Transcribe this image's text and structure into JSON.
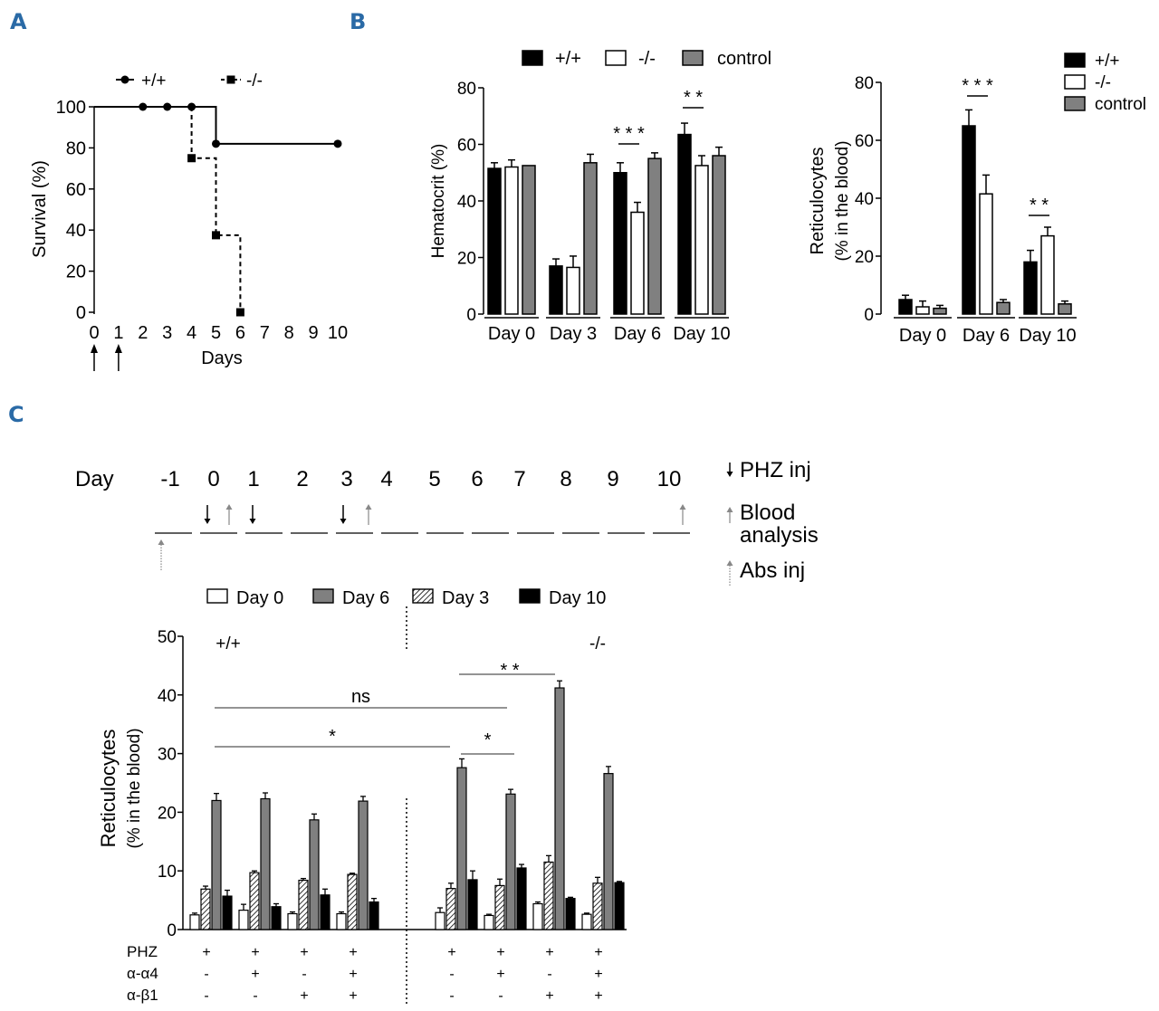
{
  "panels": {
    "A": "A",
    "B": "B",
    "C": "C"
  },
  "colors": {
    "accent": "#2a6aa6",
    "black": "#000000",
    "white": "#ffffff",
    "gray": "#808080",
    "lightgray": "#999999"
  },
  "chart_data": [
    {
      "id": "survival",
      "type": "line",
      "ylabel": "Survival (%)",
      "xlabel": "Days",
      "xticks": [
        0,
        1,
        2,
        3,
        4,
        5,
        6,
        7,
        8,
        9,
        10
      ],
      "yticks": [
        0,
        20,
        40,
        60,
        80,
        100
      ],
      "ylim": [
        0,
        100
      ],
      "xlim": [
        0,
        10
      ],
      "legend": [
        "+/+",
        "-/-"
      ],
      "series": [
        {
          "name": "+/+",
          "style": "solid",
          "marker": "circle",
          "x": [
            0,
            2,
            3,
            4,
            5,
            10
          ],
          "y": [
            100,
            100,
            100,
            100,
            82,
            82
          ]
        },
        {
          "name": "-/-",
          "style": "dashed",
          "marker": "square",
          "x": [
            4,
            5,
            6
          ],
          "y": [
            75,
            37.5,
            0
          ]
        }
      ],
      "annotations": [
        "injection arrows at day 0 and day 1"
      ]
    },
    {
      "id": "hematocrit",
      "type": "bar",
      "ylabel": "Hematocrit (%)",
      "categories": [
        "Day 0",
        "Day 3",
        "Day 6",
        "Day 10"
      ],
      "yticks": [
        0,
        20,
        40,
        60,
        80
      ],
      "ylim": [
        0,
        80
      ],
      "series": [
        {
          "name": "+/+",
          "color": "#000000",
          "values": [
            51.5,
            17,
            50,
            63.5
          ],
          "errors": [
            2,
            2.5,
            3.5,
            4
          ]
        },
        {
          "name": "-/-",
          "color": "#ffffff",
          "values": [
            52,
            16.5,
            36,
            52.5
          ],
          "errors": [
            2.5,
            4,
            3.5,
            3.5
          ]
        },
        {
          "name": "control",
          "color": "#808080",
          "values": [
            52.5,
            53.5,
            55,
            56
          ],
          "errors": [
            0,
            3,
            2,
            3
          ]
        }
      ],
      "significance": [
        {
          "category": "Day 6",
          "label": "* * *"
        },
        {
          "category": "Day 10",
          "label": "* *"
        }
      ]
    },
    {
      "id": "reticulocytes_B",
      "type": "bar",
      "ylabel": "Reticulocytes",
      "ylabel2": "(% in the blood)",
      "categories": [
        "Day 0",
        "Day 6",
        "Day 10"
      ],
      "yticks": [
        0,
        20,
        40,
        60,
        80
      ],
      "ylim": [
        0,
        80
      ],
      "series": [
        {
          "name": "+/+",
          "color": "#000000",
          "values": [
            5,
            65,
            18
          ],
          "errors": [
            1.5,
            5.5,
            4
          ]
        },
        {
          "name": "-/-",
          "color": "#ffffff",
          "values": [
            2.5,
            41.5,
            27
          ],
          "errors": [
            2,
            6.5,
            3
          ]
        },
        {
          "name": "control",
          "color": "#808080",
          "values": [
            2,
            4,
            3.5
          ],
          "errors": [
            1,
            1,
            1
          ]
        }
      ],
      "significance": [
        {
          "category": "Day 6",
          "label": "* * *"
        },
        {
          "category": "Day 10",
          "label": "* *"
        }
      ]
    },
    {
      "id": "reticulocytes_C",
      "type": "bar",
      "ylabel": "Reticulocytes",
      "ylabel2": "(% in the blood)",
      "yticks": [
        0,
        10,
        20,
        30,
        40,
        50
      ],
      "ylim": [
        0,
        50
      ],
      "group_labels": [
        "+/+",
        "-/-"
      ],
      "legend_order": [
        "Day 0",
        "Day 6",
        "Day 3",
        "Day 10"
      ],
      "bar_order": [
        "Day 0",
        "Day 3",
        "Day 6",
        "Day 10"
      ],
      "series": [
        {
          "name": "Day 0",
          "fill": "white",
          "values": [
            2.5,
            3.3,
            2.7,
            2.7,
            2.9,
            2.4,
            4.4,
            2.6
          ],
          "errors": [
            0.3,
            1.0,
            0.3,
            0.3,
            0.8,
            0.2,
            0.3,
            0.2
          ]
        },
        {
          "name": "Day 3",
          "fill": "hatched",
          "values": [
            6.9,
            9.7,
            8.4,
            9.4,
            7.0,
            7.5,
            11.5,
            7.9
          ],
          "errors": [
            0.5,
            0.3,
            0.3,
            0.2,
            0.9,
            1.1,
            1.1,
            1.0
          ]
        },
        {
          "name": "Day 6",
          "fill": "gray",
          "values": [
            22,
            22.3,
            18.7,
            21.9,
            27.6,
            23.1,
            41.2,
            26.6
          ],
          "errors": [
            1.2,
            1.0,
            1.0,
            0.8,
            1.5,
            0.8,
            1.2,
            1.2
          ]
        },
        {
          "name": "Day 10",
          "fill": "black",
          "values": [
            5.7,
            3.9,
            5.9,
            4.7,
            8.5,
            10.5,
            5.3,
            8.0
          ],
          "errors": [
            1.0,
            0.5,
            1.0,
            0.6,
            1.5,
            0.6,
            0.2,
            0.2
          ]
        }
      ],
      "significance": [
        {
          "from_group": 0,
          "to_group": 5,
          "series": "Day 6",
          "label": "ns"
        },
        {
          "from_group": 0,
          "to_group": 4,
          "series": "Day 6",
          "label": "*"
        },
        {
          "from_group": 4,
          "to_group": 5,
          "series": "Day 6",
          "label": "*"
        },
        {
          "from_group": 4,
          "to_group": 6,
          "series": "Day 6",
          "label": "* *"
        }
      ],
      "treatments": {
        "rows": [
          "PHZ",
          "α-α4",
          "α-β1"
        ],
        "values": [
          [
            "+",
            "+",
            "+",
            "+",
            "+",
            "+",
            "+",
            "+"
          ],
          [
            "-",
            "+",
            "-",
            "+",
            "-",
            "+",
            "-",
            "+"
          ],
          [
            "-",
            "-",
            "+",
            "+",
            "-",
            "-",
            "+",
            "+"
          ]
        ]
      }
    }
  ],
  "timeline": {
    "day_label": "Day",
    "days": [
      "-1",
      "0",
      "1",
      "2",
      "3",
      "4",
      "5",
      "6",
      "7",
      "8",
      "9",
      "10"
    ],
    "legend": [
      "PHZ inj",
      "Blood",
      "analysis",
      "Abs inj"
    ],
    "phz_days": [
      "0",
      "1",
      "3"
    ],
    "blood_days": [
      "0",
      "3",
      "10"
    ],
    "abs_days": [
      "-1"
    ]
  }
}
